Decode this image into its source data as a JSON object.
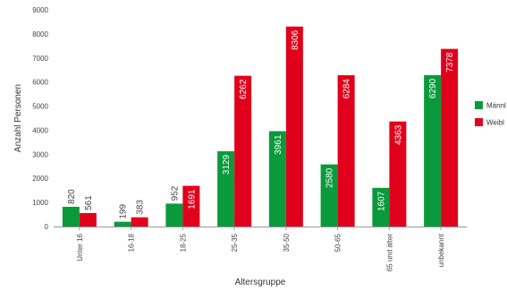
{
  "chart_data": {
    "type": "bar",
    "categories": [
      "Unter 16",
      "16-18",
      "18-25",
      "25-35",
      "35-50",
      "50-65",
      "65 und älter",
      "unbekannt"
    ],
    "series": [
      {
        "name": "Männl",
        "color": "#0a9a3c",
        "values": [
          820,
          199,
          952,
          3129,
          3961,
          2580,
          1607,
          6290
        ]
      },
      {
        "name": "Weibl",
        "color": "#e0001b",
        "values": [
          561,
          383,
          1691,
          6262,
          8306,
          6284,
          4363,
          7378
        ]
      }
    ],
    "ylim": [
      0,
      9000
    ],
    "yticks": [
      0,
      1000,
      2000,
      3000,
      4000,
      5000,
      6000,
      7000,
      8000,
      9000
    ],
    "ytick_labels": [
      "0",
      "1000",
      "2000",
      "3000",
      "4000",
      "5000",
      "6000",
      "7000",
      "8000",
      "9000"
    ],
    "xlabel": "Altersgruppe",
    "ylabel": "Anzahl Personen",
    "legend_position": "right",
    "grid": false
  }
}
